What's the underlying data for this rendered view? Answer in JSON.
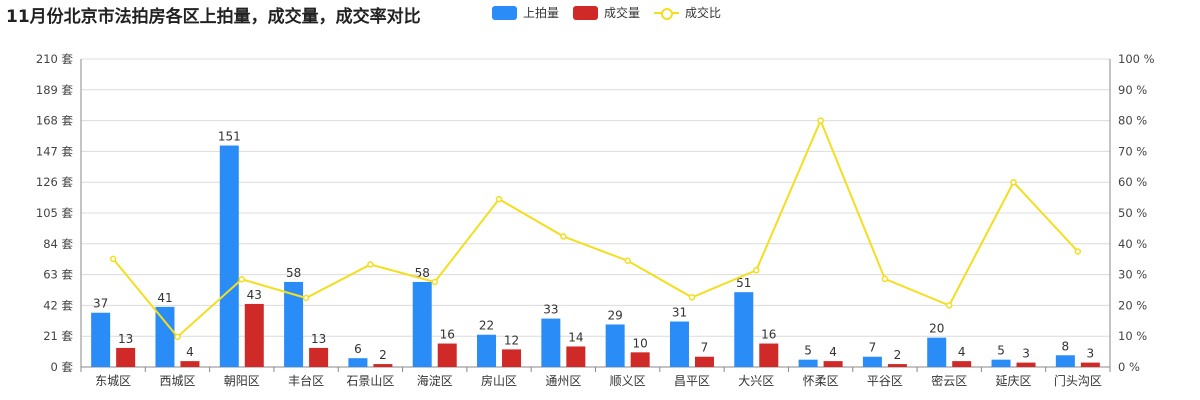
{
  "title": "11月份北京市法拍房各区上拍量，成交量，成交率对比",
  "legend": {
    "listed": "上拍量",
    "sold": "成交量",
    "ratio": "成交比"
  },
  "colors": {
    "listed": "#2a8cf7",
    "sold": "#cf2a27",
    "ratio": "#f3de1f"
  },
  "chart_data": {
    "type": "bar",
    "title": "11月份北京市法拍房各区上拍量，成交量，成交率对比",
    "categories": [
      "东城区",
      "西城区",
      "朝阳区",
      "丰台区",
      "石景山区",
      "海淀区",
      "房山区",
      "通州区",
      "顺义区",
      "昌平区",
      "大兴区",
      "怀柔区",
      "平谷区",
      "密云区",
      "延庆区",
      "门头沟区"
    ],
    "series": [
      {
        "name": "上拍量",
        "type": "bar",
        "axis": "left",
        "values": [
          37,
          41,
          151,
          58,
          6,
          58,
          22,
          33,
          29,
          31,
          51,
          5,
          7,
          20,
          5,
          8
        ]
      },
      {
        "name": "成交量",
        "type": "bar",
        "axis": "left",
        "values": [
          13,
          4,
          43,
          13,
          2,
          16,
          12,
          14,
          10,
          7,
          16,
          4,
          2,
          4,
          3,
          3
        ]
      },
      {
        "name": "成交比",
        "type": "line",
        "axis": "right",
        "values": [
          35.1,
          9.8,
          28.5,
          22.4,
          33.3,
          27.6,
          54.5,
          42.4,
          34.5,
          22.6,
          31.4,
          80.0,
          28.6,
          20.0,
          60.0,
          37.5
        ]
      }
    ],
    "y_left": {
      "min": 0,
      "max": 210,
      "ticks": [
        0,
        21,
        42,
        63,
        84,
        105,
        126,
        147,
        168,
        189,
        210
      ],
      "unit": "套"
    },
    "y_right": {
      "min": 0,
      "max": 100,
      "ticks": [
        0,
        10,
        20,
        30,
        40,
        50,
        60,
        70,
        80,
        90,
        100
      ],
      "unit": "%"
    },
    "grid": true,
    "legend_position": "top-center"
  }
}
